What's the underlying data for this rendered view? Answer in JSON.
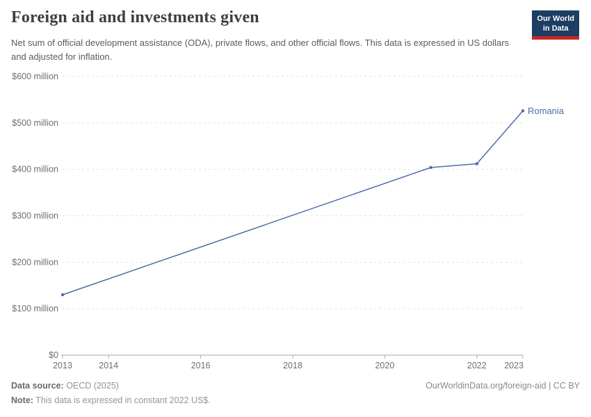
{
  "header": {
    "title": "Foreign aid and investments given",
    "subtitle": "Net sum of official development assistance (ODA), private flows, and other official flows. This data is expressed in US dollars and adjusted for inflation."
  },
  "logo": {
    "line1": "Our World",
    "line2": "in Data",
    "bg_color": "#1d3d63",
    "accent_color": "#c62828"
  },
  "chart_data": {
    "type": "line",
    "title": "Foreign aid and investments given",
    "xlabel": "",
    "ylabel": "",
    "unit": "US$ (constant 2022), millions",
    "xlim": [
      2013,
      2023
    ],
    "ylim": [
      0,
      600
    ],
    "grid": "horizontal-dashed",
    "legend_position": "end-of-line-label",
    "x": [
      2013,
      2021,
      2022,
      2023
    ],
    "series": [
      {
        "name": "Romania",
        "values": [
          130,
          404,
          412,
          526
        ],
        "color": "#4c6da8"
      }
    ],
    "yticks": [
      {
        "value": 0,
        "label": "$0"
      },
      {
        "value": 100,
        "label": "$100 million"
      },
      {
        "value": 200,
        "label": "$200 million"
      },
      {
        "value": 300,
        "label": "$300 million"
      },
      {
        "value": 400,
        "label": "$400 million"
      },
      {
        "value": 500,
        "label": "$500 million"
      },
      {
        "value": 600,
        "label": "$600 million"
      }
    ],
    "xticks": [
      {
        "value": 2013,
        "label": "2013"
      },
      {
        "value": 2014,
        "label": "2014"
      },
      {
        "value": 2016,
        "label": "2016"
      },
      {
        "value": 2018,
        "label": "2018"
      },
      {
        "value": 2020,
        "label": "2020"
      },
      {
        "value": 2022,
        "label": "2022"
      },
      {
        "value": 2023,
        "label": "2023"
      }
    ],
    "colors": {
      "gridline": "#e0e0e0",
      "axis": "#a3a3a3",
      "tick": "#b0b0b0",
      "tick_label": "#6e6e6e"
    }
  },
  "footer": {
    "source_label": "Data source:",
    "source_value": " OECD (2025)",
    "note_label": "Note:",
    "note_value": " This data is expressed in constant 2022 US$.",
    "link": "OurWorldinData.org/foreign-aid | CC BY"
  }
}
